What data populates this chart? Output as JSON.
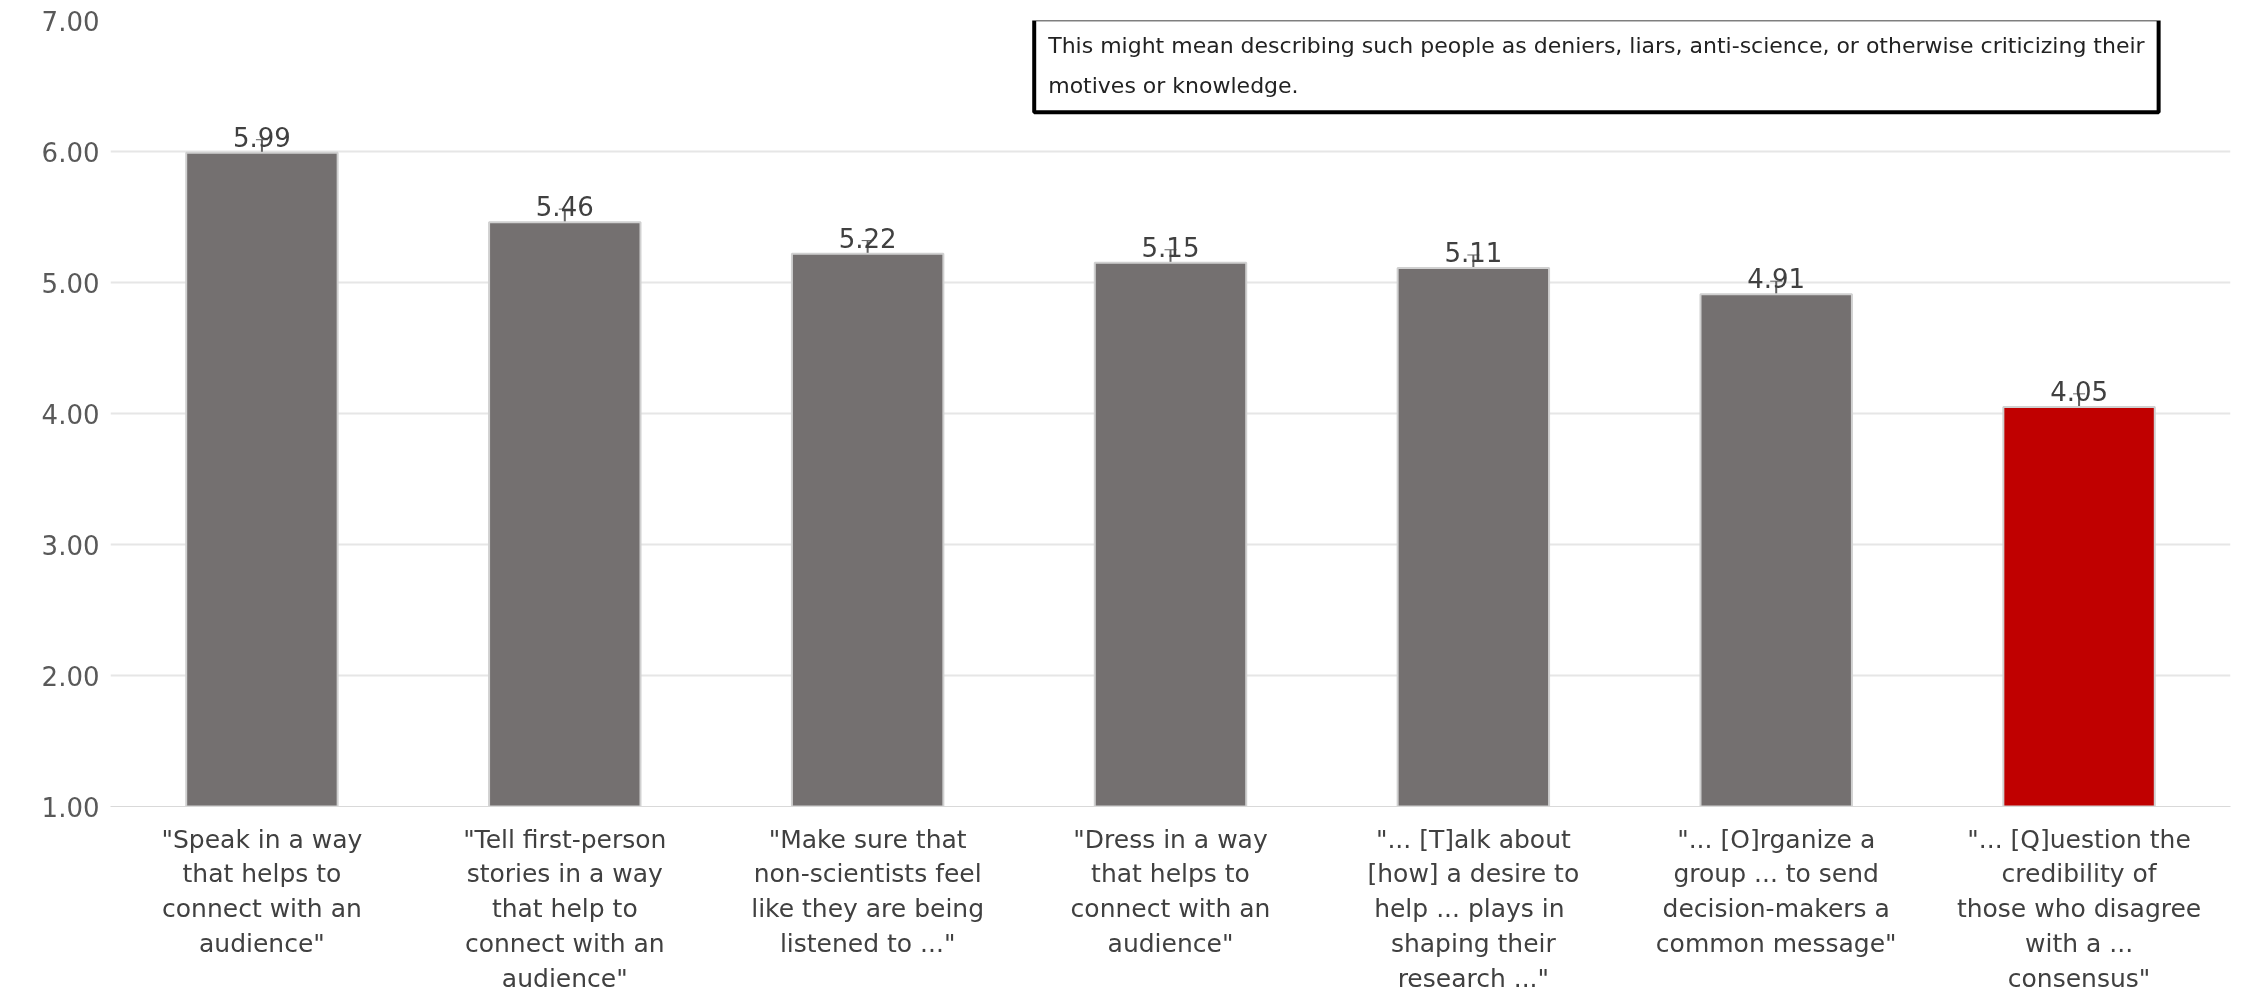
{
  "chart_data": {
    "type": "bar",
    "categories": [
      "\"Speak in a way that helps to connect with an audience\"",
      "\"Tell first-person stories in a way that help to connect with an audience\"",
      "\"Make sure that non-scientists feel like they are being listened to ...\"",
      "\"Dress in a way that helps to connect with an audience\"",
      "\"... [T]alk about [how] a desire to help ...  plays in shaping their research ...\"",
      "\"... [O]rganize a group ... to send decision-makers a common message\"",
      "\"... [Q]uestion the credibility of those who disagree with a ... consensus\""
    ],
    "values": [
      5.99,
      5.46,
      5.22,
      5.15,
      5.11,
      4.91,
      4.05
    ],
    "colors": [
      "#747070",
      "#747070",
      "#747070",
      "#747070",
      "#747070",
      "#747070",
      "#c00000"
    ],
    "errors": [
      0.1,
      0.1,
      0.1,
      0.1,
      0.1,
      0.1,
      0.1
    ],
    "data_labels": true,
    "ylim": [
      1,
      7
    ],
    "yticks": [
      {
        "value": 1,
        "label": "1.00"
      },
      {
        "value": 2,
        "label": "2.00"
      },
      {
        "value": 3,
        "label": "3.00"
      },
      {
        "value": 4,
        "label": "4.00"
      },
      {
        "value": 5,
        "label": "5.00"
      },
      {
        "value": 6,
        "label": "6.00"
      },
      {
        "value": 7,
        "label": "7.00"
      }
    ],
    "grid": "y",
    "annotations": [
      "This might mean describing such people as deniers, liars, anti-science, or otherwise criticizing their motives or knowledge."
    ]
  }
}
